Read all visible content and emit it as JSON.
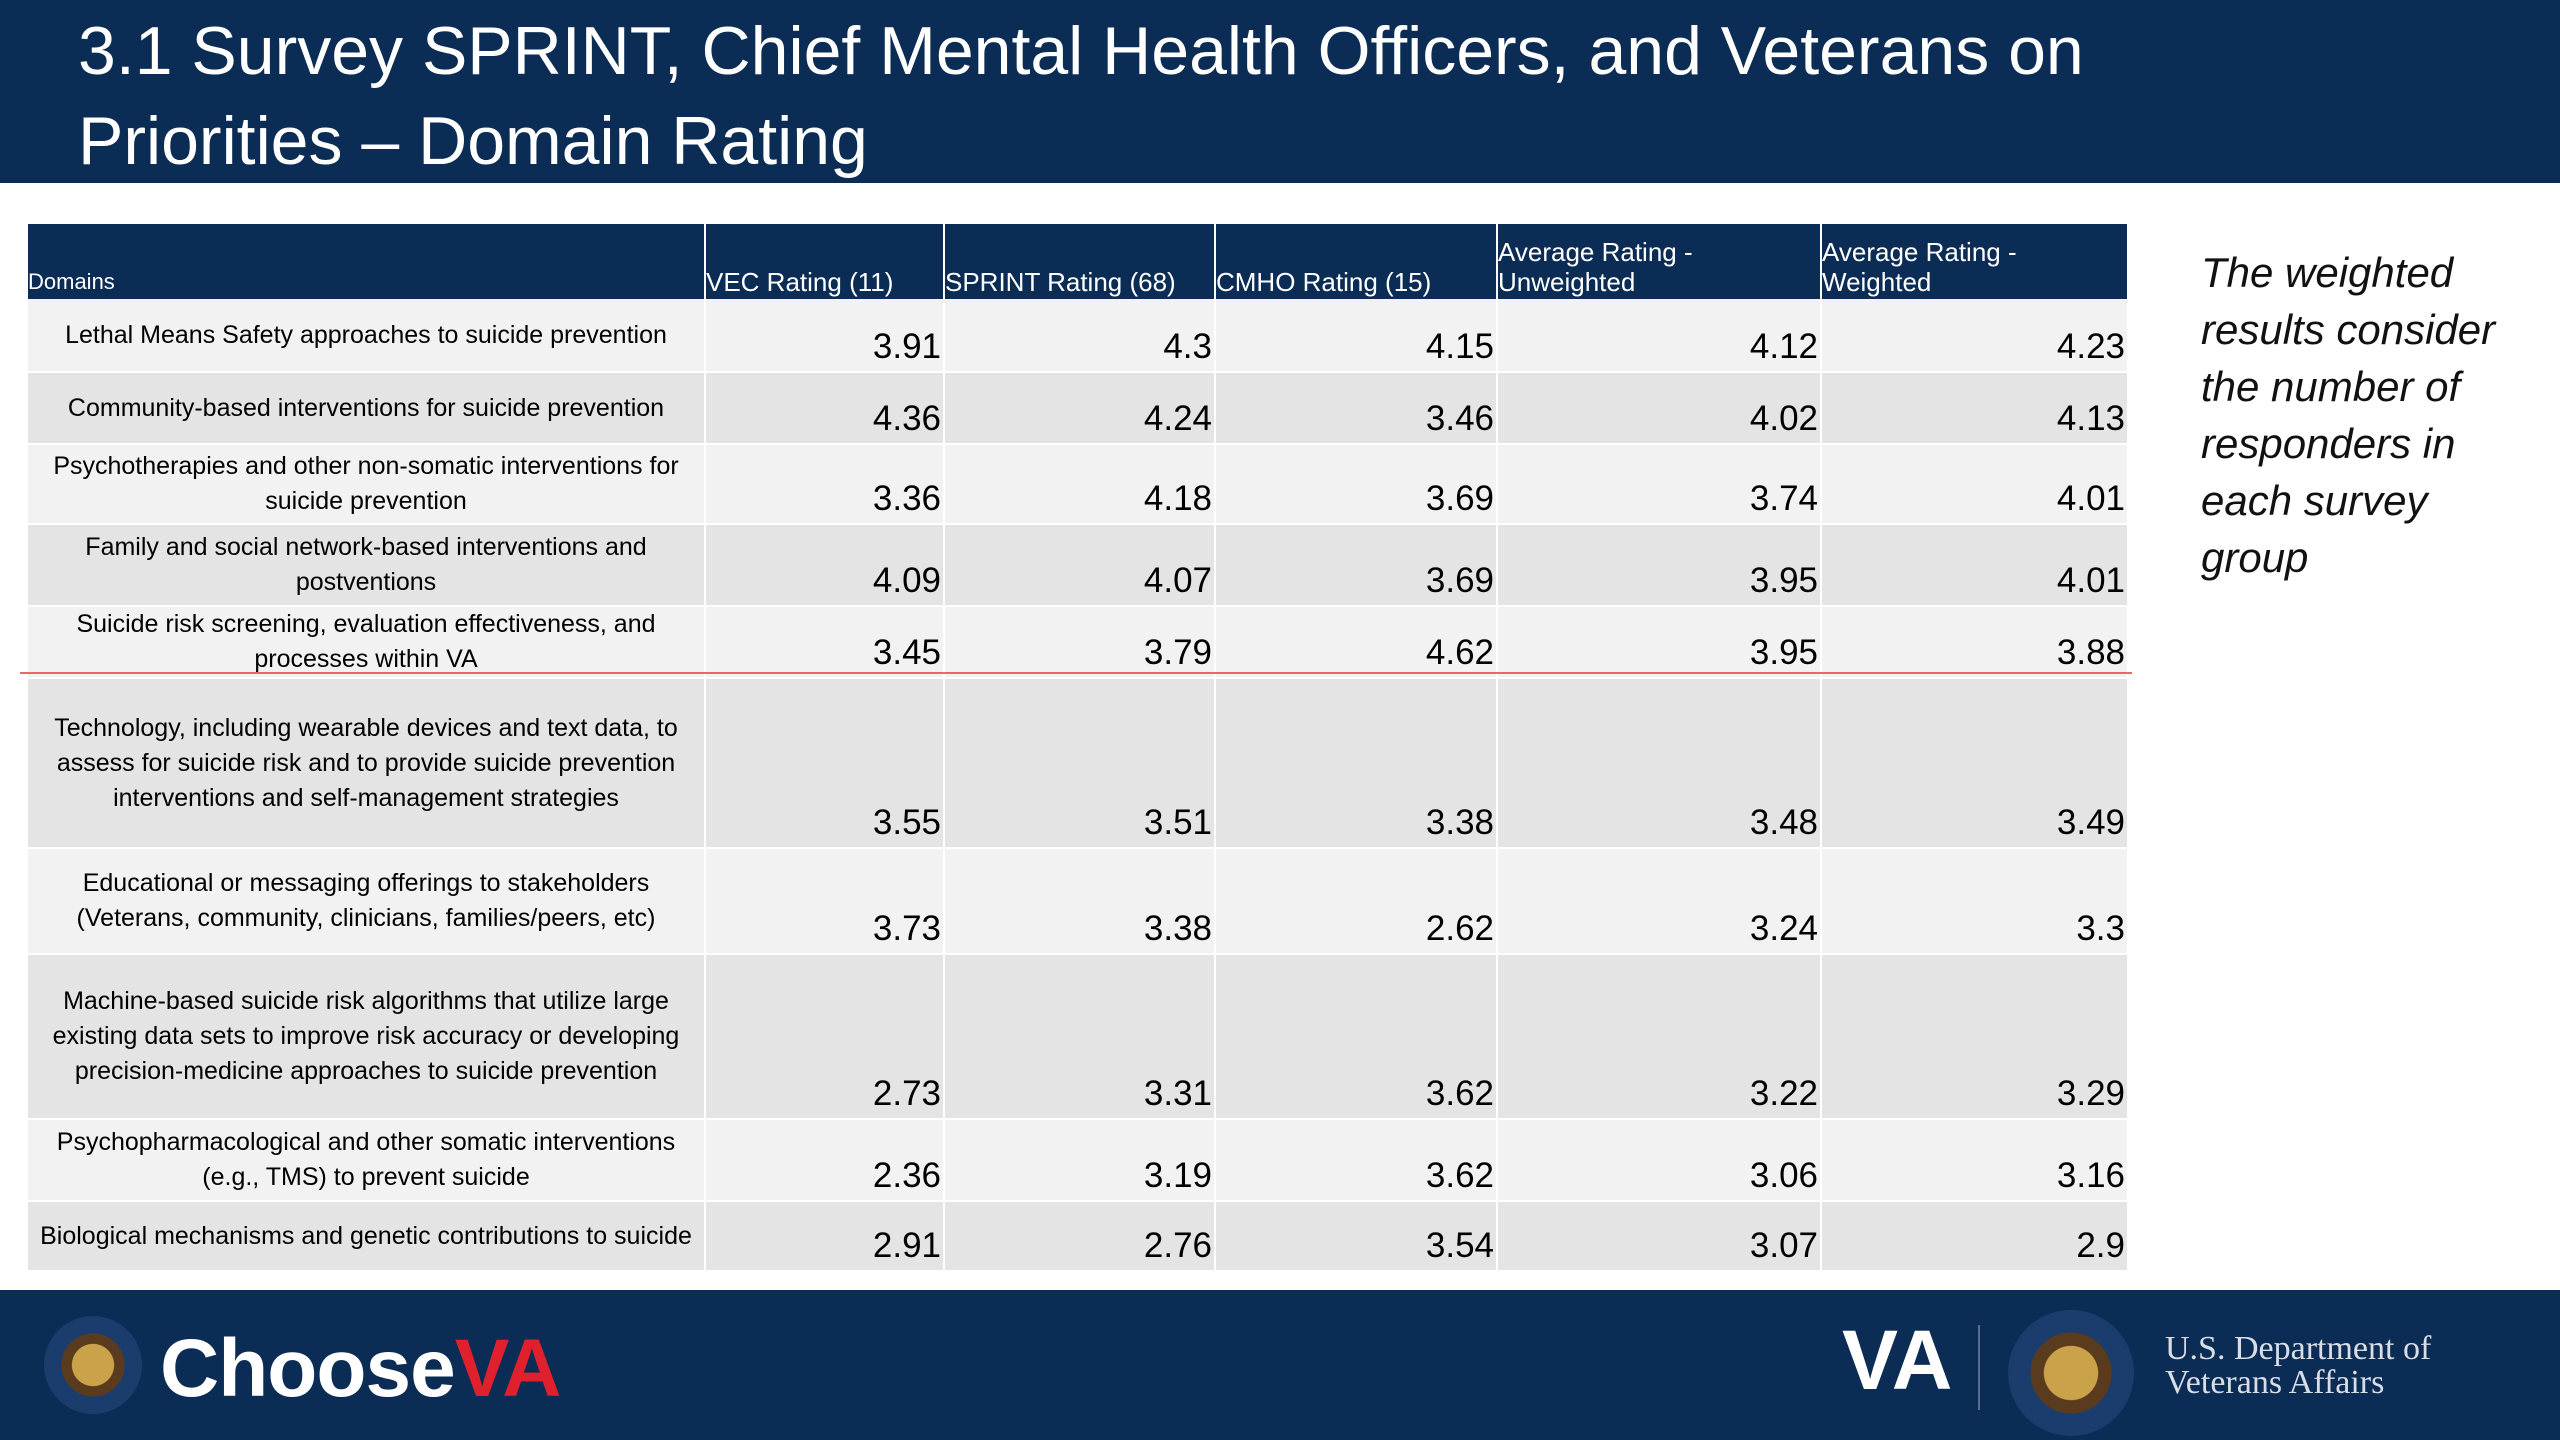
{
  "header": {
    "title": "3.1 Survey SPRINT, Chief Mental Health Officers, and Veterans on Priorities – Domain Rating"
  },
  "table": {
    "columns": [
      "Domains",
      "VEC Rating (11)",
      "SPRINT Rating (68)",
      "CMHO Rating (15)",
      "Average Rating - Unweighted",
      "Average Rating - Weighted"
    ],
    "rows": [
      [
        "Lethal Means Safety approaches to suicide prevention",
        3.91,
        4.3,
        4.15,
        4.12,
        4.23
      ],
      [
        "Community-based interventions for suicide prevention",
        4.36,
        4.24,
        3.46,
        4.02,
        4.13
      ],
      [
        "Psychotherapies and other non-somatic interventions for suicide prevention",
        3.36,
        4.18,
        3.69,
        3.74,
        4.01
      ],
      [
        "Family and social network-based interventions and postventions",
        4.09,
        4.07,
        3.69,
        3.95,
        4.01
      ],
      [
        "Suicide risk screening, evaluation effectiveness, and processes within VA",
        3.45,
        3.79,
        4.62,
        3.95,
        3.88
      ],
      [
        "Technology, including wearable devices and text data, to assess for suicide risk and to provide suicide prevention interventions and self-management strategies",
        3.55,
        3.51,
        3.38,
        3.48,
        3.49
      ],
      [
        "Educational or messaging offerings to stakeholders (Veterans, community, clinicians, families/peers, etc)",
        3.73,
        3.38,
        2.62,
        3.24,
        3.3
      ],
      [
        "Machine-based suicide risk algorithms that utilize large existing data sets to improve risk accuracy or developing precision-medicine approaches to suicide prevention",
        2.73,
        3.31,
        3.62,
        3.22,
        3.29
      ],
      [
        "Psychopharmacological and other somatic interventions (e.g., TMS) to prevent suicide",
        2.36,
        3.19,
        3.62,
        3.06,
        3.16
      ],
      [
        "Biological mechanisms and genetic contributions to suicide",
        2.91,
        2.76,
        3.54,
        3.07,
        2.9
      ]
    ]
  },
  "note": "The weighted results consider the number of responders in each survey group",
  "footer": {
    "brand_left": "Choose",
    "brand_left_accent": "VA",
    "brand_right": "VA",
    "department": "U.S. Department of Veterans Affairs"
  }
}
